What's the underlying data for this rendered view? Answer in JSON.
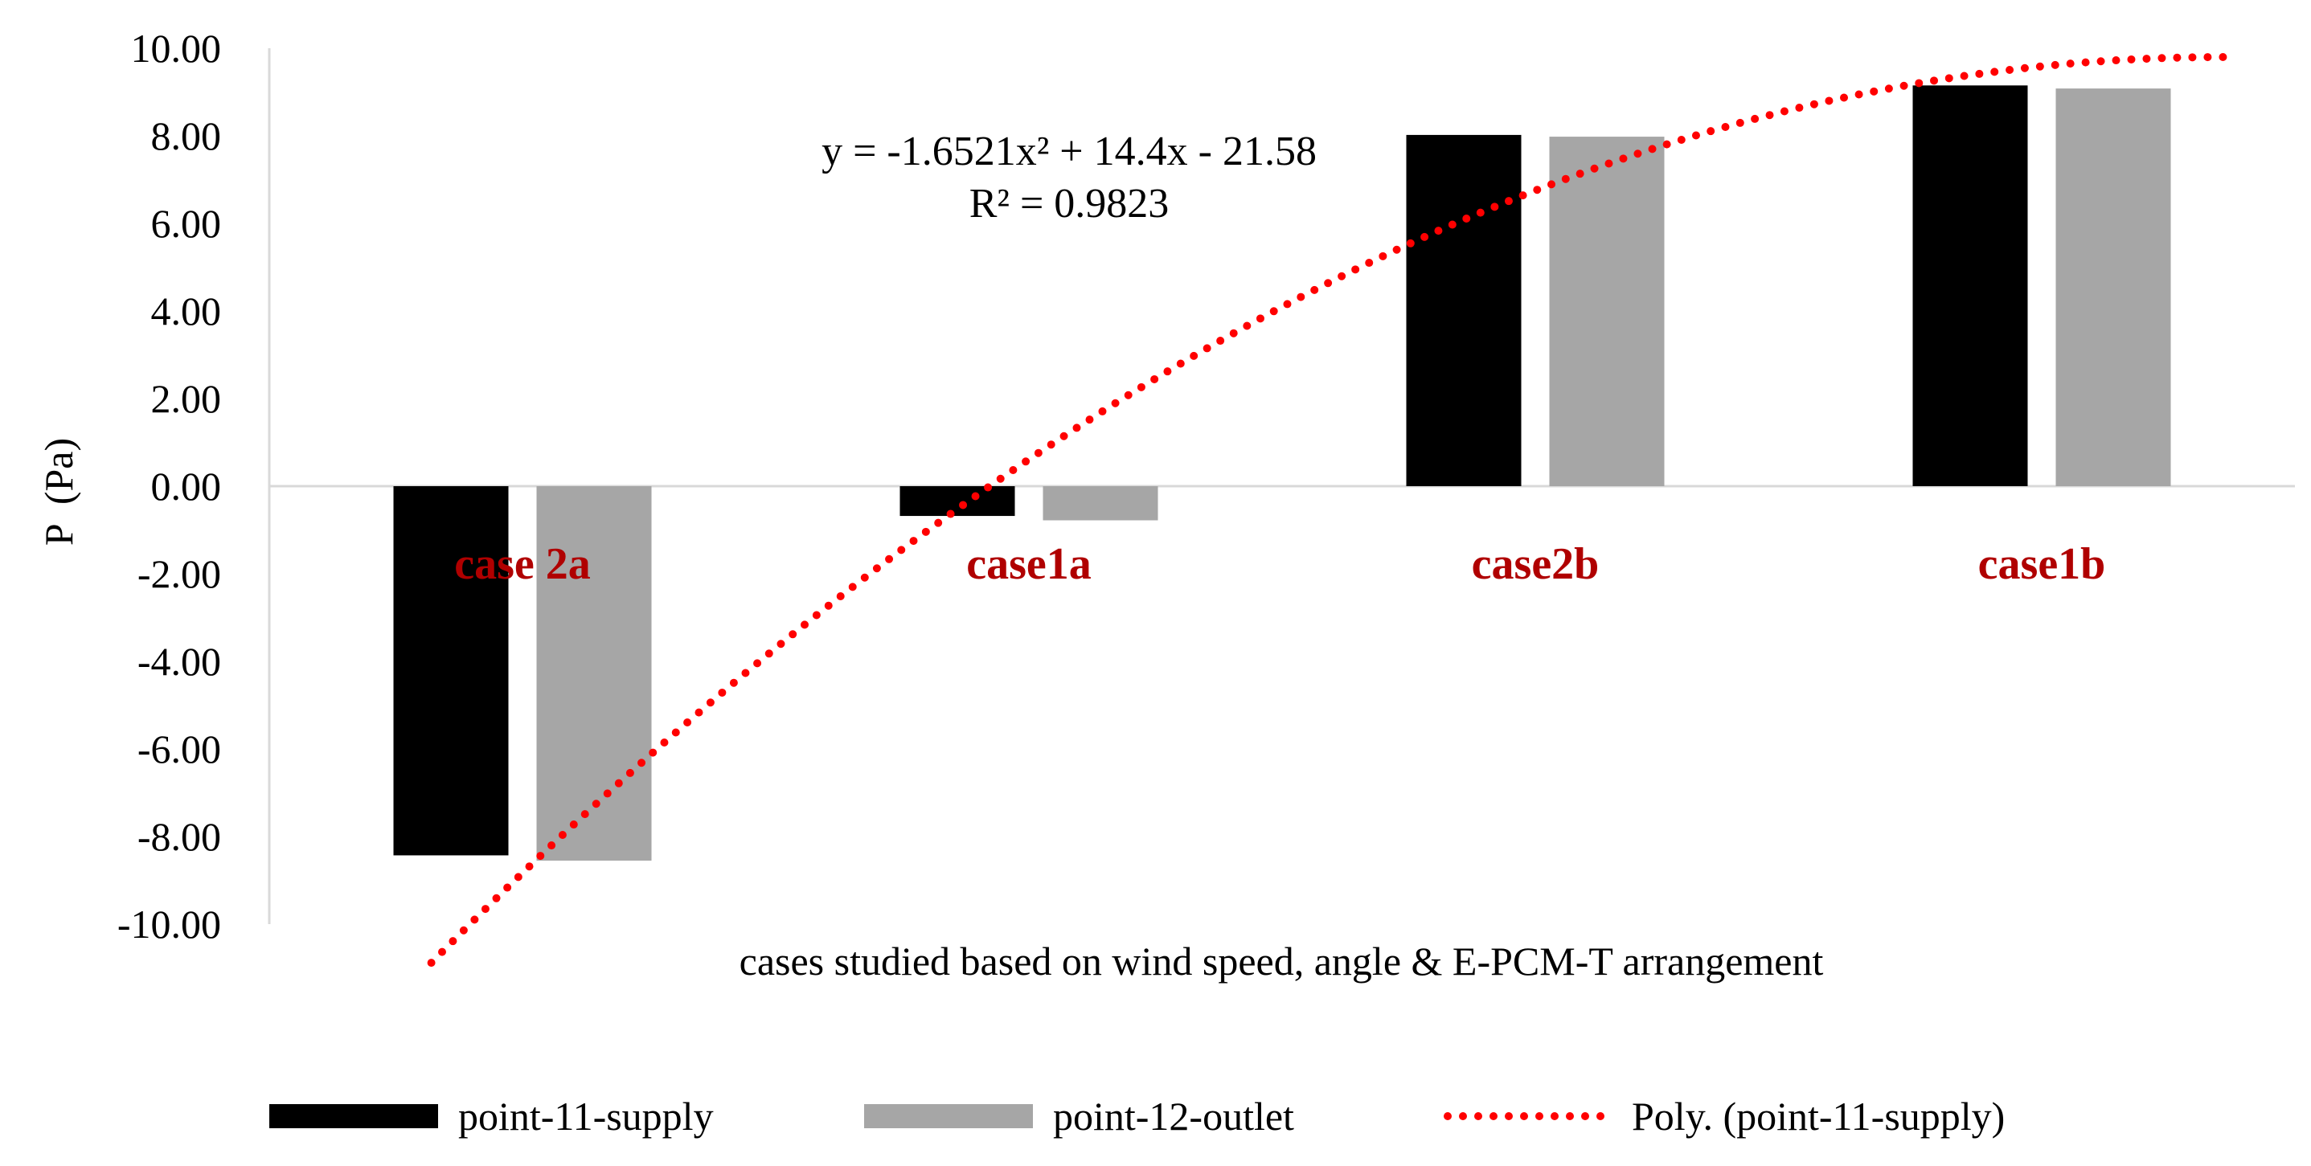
{
  "chart_data": {
    "type": "bar",
    "categories": [
      "case 2a",
      "case1a",
      "case2b",
      "case1b"
    ],
    "series": [
      {
        "name": "point-11-supply",
        "values": [
          -8.43,
          -0.68,
          8.02,
          9.15
        ],
        "color": "#000000"
      },
      {
        "name": "point-12-outlet",
        "values": [
          -8.55,
          -0.78,
          7.98,
          9.08
        ],
        "color": "#a6a6a6"
      }
    ],
    "trendline": {
      "name": "Poly. (point-11-supply)",
      "type": "polynomial",
      "series": "point-11-supply",
      "coefficients": [
        -1.6521,
        14.4,
        -21.58
      ],
      "color": "#ff0000",
      "style": "dotted"
    },
    "equation": {
      "line1": "y = -1.6521x² + 14.4x - 21.58",
      "line2": "R² = 0.9823"
    },
    "ylabel": "P  (Pa)",
    "xlabel": "cases studied based on wind speed, angle & E-PCM-T arrangement",
    "ylim": [
      -10,
      10
    ],
    "yticks": [
      "-10.00",
      "-8.00",
      "-6.00",
      "-4.00",
      "-2.00",
      "0.00",
      "2.00",
      "4.00",
      "6.00",
      "8.00",
      "10.00"
    ],
    "category_label_color": "#b00000",
    "legend_position": "bottom",
    "grid": false
  }
}
